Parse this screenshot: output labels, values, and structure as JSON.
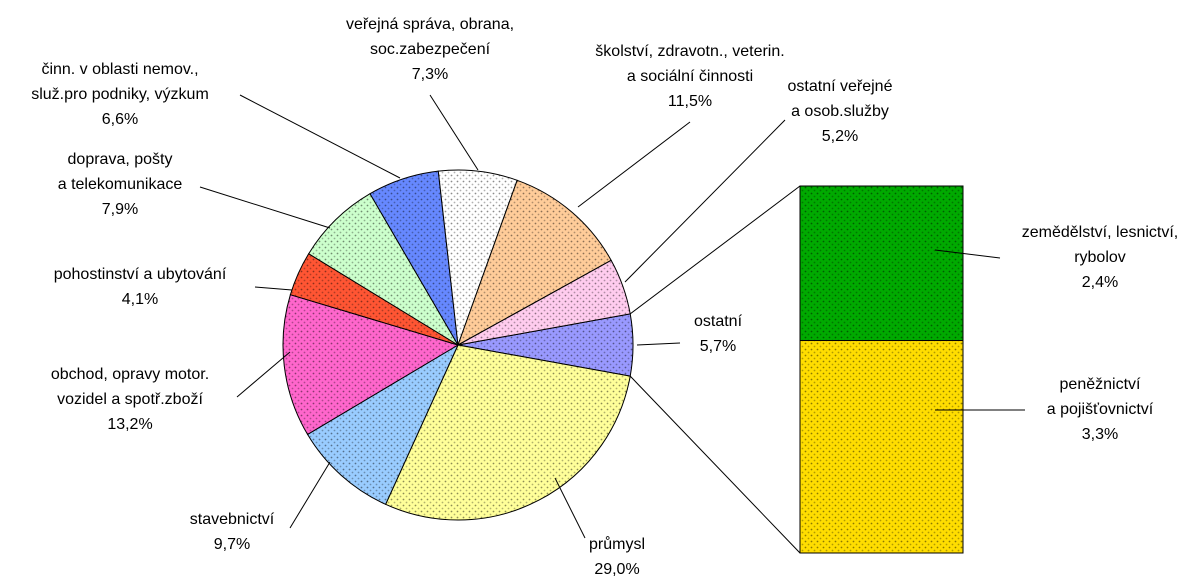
{
  "chart_data": {
    "type": "bar-of-pie",
    "categories": [
      [
        "ostatní"
      ],
      [
        "průmysl"
      ],
      [
        "stavebnictví"
      ],
      [
        "obchod, opravy motor.",
        "vozidel a spotř.zboží"
      ],
      [
        "pohostinství a ubytování"
      ],
      [
        "doprava, pošty",
        "a telekomunikace"
      ],
      [
        "činn. v oblasti nemov.,",
        "služ.pro podniky, výzkum"
      ],
      [
        "veřejná správa, obrana,",
        "soc.zabezpečení"
      ],
      [
        "školství, zdravotn., veterin.",
        "a sociální činnosti"
      ],
      [
        "ostatní veřejné",
        "a osob.služby"
      ]
    ],
    "values": [
      5.7,
      29.0,
      9.7,
      13.2,
      4.1,
      7.9,
      6.6,
      7.3,
      11.5,
      5.2
    ],
    "value_labels": [
      "5,7%",
      "29,0%",
      "9,7%",
      "13,2%",
      "4,1%",
      "7,9%",
      "6,6%",
      "7,3%",
      "11,5%",
      "5,2%"
    ],
    "colors": [
      "#9999ff",
      "#ffff99",
      "#99ccff",
      "#ff66cc",
      "#ff5533",
      "#ccffcc",
      "#6688ff",
      "#ffffff",
      "#ffcc99",
      "#ffccee"
    ],
    "bar_categories": [
      [
        "zemědělství, lesnictví,",
        "rybolov"
      ],
      [
        "peněžnictví",
        "a pojišťovnictví"
      ]
    ],
    "bar_values": [
      2.4,
      3.3
    ],
    "bar_value_labels": [
      "2,4%",
      "3,3%"
    ],
    "bar_colors": [
      "#00aa00",
      "#ffdd00"
    ]
  }
}
